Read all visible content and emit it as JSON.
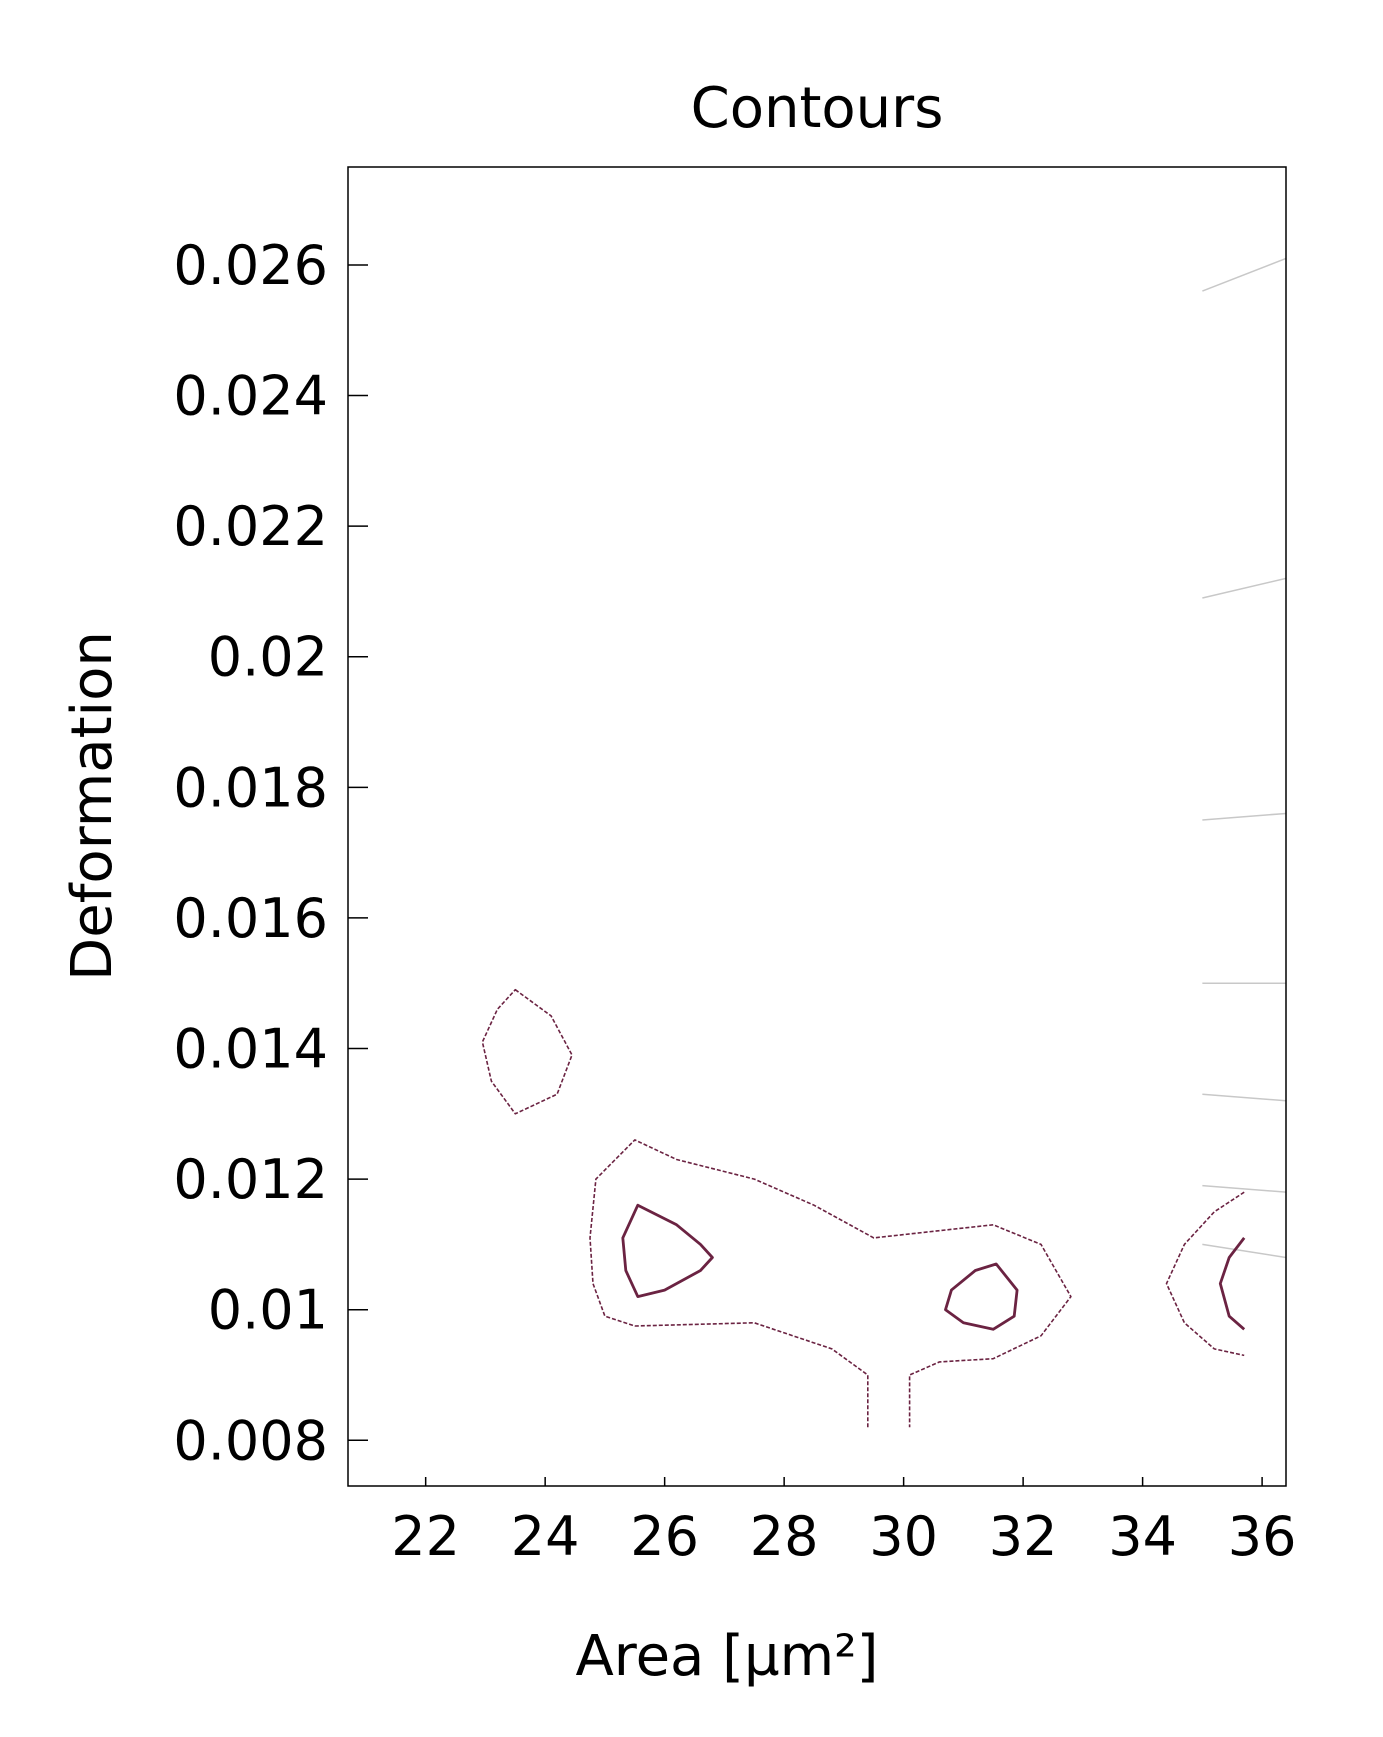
{
  "chart_data": {
    "type": "contour",
    "title": "Contours",
    "xlabel": "Area [µm²]",
    "ylabel": "Deformation",
    "xlim": [
      20.7,
      36.4
    ],
    "ylim": [
      0.0073,
      0.0275
    ],
    "x_ticks": [
      22,
      24,
      26,
      28,
      30,
      32,
      34,
      36
    ],
    "x_tick_labels": [
      "22",
      "24",
      "26",
      "28",
      "30",
      "32",
      "34",
      "36"
    ],
    "y_ticks": [
      0.008,
      0.01,
      0.012,
      0.014,
      0.016,
      0.018,
      0.02,
      0.022,
      0.024,
      0.026
    ],
    "y_tick_labels": [
      "0.008",
      "0.01",
      "0.012",
      "0.014",
      "0.016",
      "0.018",
      "0.02",
      "0.022",
      "0.024",
      "0.026"
    ],
    "grid": false,
    "contour_color": "#6b2342",
    "guide_line_color": "#c8c8c8",
    "contours": [
      {
        "style": "dashed",
        "closed": true,
        "points": [
          [
            23.5,
            0.0149
          ],
          [
            24.1,
            0.0145
          ],
          [
            24.45,
            0.0139
          ],
          [
            24.2,
            0.0133
          ],
          [
            23.5,
            0.013
          ],
          [
            23.1,
            0.0135
          ],
          [
            22.95,
            0.0141
          ],
          [
            23.2,
            0.0146
          ]
        ]
      },
      {
        "style": "dashed",
        "closed": false,
        "points": [
          [
            29.4,
            0.0082
          ],
          [
            29.4,
            0.009
          ],
          [
            28.8,
            0.0094
          ],
          [
            27.5,
            0.0098
          ],
          [
            25.5,
            0.00975
          ],
          [
            25.0,
            0.0099
          ],
          [
            24.8,
            0.0104
          ],
          [
            24.75,
            0.0111
          ],
          [
            24.85,
            0.012
          ],
          [
            25.5,
            0.0126
          ],
          [
            26.2,
            0.0123
          ],
          [
            27.5,
            0.012
          ],
          [
            28.5,
            0.0116
          ],
          [
            29.5,
            0.0111
          ],
          [
            30.5,
            0.0112
          ],
          [
            31.5,
            0.0113
          ],
          [
            32.3,
            0.011
          ],
          [
            32.8,
            0.0102
          ],
          [
            32.3,
            0.0096
          ],
          [
            31.5,
            0.00925
          ],
          [
            30.6,
            0.0092
          ],
          [
            30.1,
            0.009
          ],
          [
            30.1,
            0.0082
          ]
        ]
      },
      {
        "style": "solid",
        "closed": true,
        "points": [
          [
            25.55,
            0.0116
          ],
          [
            26.2,
            0.0113
          ],
          [
            26.6,
            0.011
          ],
          [
            26.8,
            0.0108
          ],
          [
            26.6,
            0.0106
          ],
          [
            26.0,
            0.0103
          ],
          [
            25.55,
            0.0102
          ],
          [
            25.35,
            0.0106
          ],
          [
            25.3,
            0.0111
          ]
        ]
      },
      {
        "style": "solid",
        "closed": true,
        "points": [
          [
            31.55,
            0.0107
          ],
          [
            31.9,
            0.0103
          ],
          [
            31.85,
            0.0099
          ],
          [
            31.5,
            0.0097
          ],
          [
            31.0,
            0.0098
          ],
          [
            30.7,
            0.01
          ],
          [
            30.8,
            0.0103
          ],
          [
            31.2,
            0.0106
          ]
        ]
      },
      {
        "style": "dashed",
        "closed": false,
        "points": [
          [
            35.7,
            0.0118
          ],
          [
            35.2,
            0.0115
          ],
          [
            34.7,
            0.011
          ],
          [
            34.4,
            0.0104
          ],
          [
            34.7,
            0.0098
          ],
          [
            35.2,
            0.0094
          ],
          [
            35.7,
            0.0093
          ]
        ]
      },
      {
        "style": "solid",
        "closed": false,
        "points": [
          [
            35.7,
            0.0111
          ],
          [
            35.45,
            0.0108
          ],
          [
            35.3,
            0.0104
          ],
          [
            35.45,
            0.0099
          ],
          [
            35.7,
            0.0097
          ]
        ]
      }
    ],
    "guide_lines": [
      [
        [
          35.0,
          0.0256
        ],
        [
          36.4,
          0.0261
        ]
      ],
      [
        [
          35.0,
          0.0209
        ],
        [
          36.4,
          0.0212
        ]
      ],
      [
        [
          35.0,
          0.0175
        ],
        [
          36.4,
          0.0176
        ]
      ],
      [
        [
          35.0,
          0.015
        ],
        [
          36.4,
          0.015
        ]
      ],
      [
        [
          35.0,
          0.0133
        ],
        [
          36.4,
          0.0132
        ]
      ],
      [
        [
          35.0,
          0.0119
        ],
        [
          36.4,
          0.0118
        ]
      ],
      [
        [
          35.0,
          0.011
        ],
        [
          36.4,
          0.0108
        ]
      ]
    ]
  }
}
